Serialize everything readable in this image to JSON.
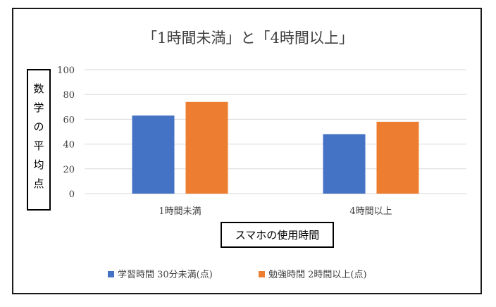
{
  "chart_data": {
    "type": "bar",
    "title": "「1時間未満」と「4時間以上」",
    "xlabel": "スマホの使用時間",
    "ylabel": "数学の平均点",
    "categories": [
      "1時間未満",
      "4時間以上"
    ],
    "series": [
      {
        "name": "学習時間 30分未満(点)",
        "color": "#4472C4",
        "values": [
          63,
          48
        ]
      },
      {
        "name": "勉強時間 2時間以上(点)",
        "color": "#ED7D31",
        "values": [
          74,
          58
        ]
      }
    ],
    "ylim": [
      0,
      100
    ],
    "yticks": [
      0,
      20,
      40,
      60,
      80,
      100
    ],
    "grid": true,
    "legend": "bottom"
  }
}
